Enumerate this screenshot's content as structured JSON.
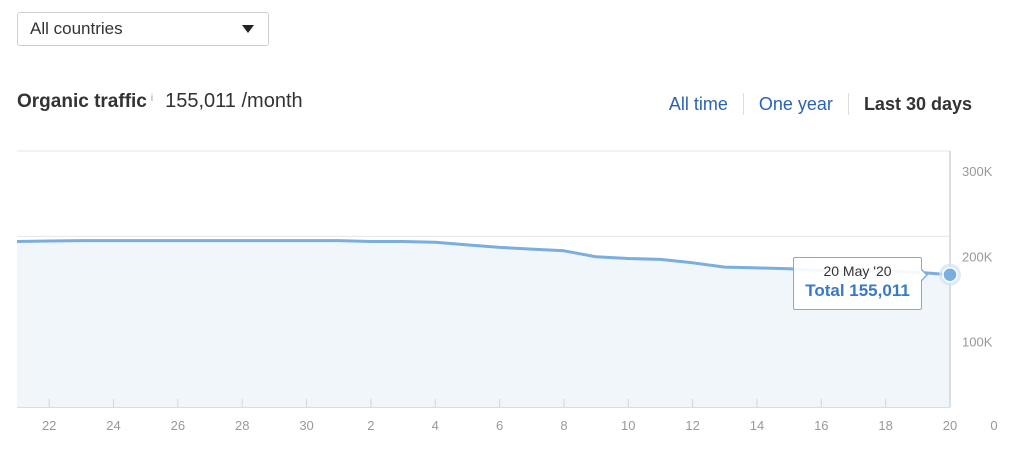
{
  "filters": {
    "country_select": {
      "value": "All countries",
      "icon": "caret-down-icon"
    }
  },
  "header": {
    "title": "Organic traffic",
    "info_icon": "i",
    "metric_value": "155,011 /month"
  },
  "range_tabs": [
    {
      "label": "All time",
      "active": false
    },
    {
      "label": "One year",
      "active": false
    },
    {
      "label": "Last 30 days",
      "active": true
    }
  ],
  "tooltip": {
    "date": "20 May '20",
    "total": "Total 155,011"
  },
  "colors": {
    "line": "#7aaee0",
    "area_fill": "#f1f6fb",
    "grid": "#e6e6e6",
    "link": "#2c62b3",
    "tooltip_total": "#3a78c8"
  },
  "chart_data": {
    "type": "area",
    "title": "Organic traffic",
    "xlabel": "",
    "ylabel": "",
    "x": [
      "21",
      "22",
      "23",
      "24",
      "25",
      "26",
      "27",
      "28",
      "29",
      "30",
      "1",
      "2",
      "3",
      "4",
      "5",
      "6",
      "7",
      "8",
      "9",
      "10",
      "11",
      "12",
      "13",
      "14",
      "15",
      "16",
      "17",
      "18",
      "19",
      "20"
    ],
    "x_tick_labels": [
      "22",
      "24",
      "26",
      "28",
      "30",
      "2",
      "4",
      "6",
      "8",
      "10",
      "12",
      "14",
      "16",
      "18",
      "20"
    ],
    "series": [
      {
        "name": "Total",
        "values": [
          194000,
          194500,
          195000,
          195000,
          195000,
          195000,
          195000,
          195000,
          195000,
          195000,
          195000,
          194000,
          194000,
          193000,
          190000,
          187000,
          185000,
          183000,
          176000,
          174000,
          173000,
          169000,
          164000,
          163000,
          162000,
          160000,
          159500,
          159000,
          158000,
          155011
        ]
      }
    ],
    "y_tick_labels": [
      "0",
      "100K",
      "200K",
      "300K"
    ],
    "ylim": [
      0,
      300000
    ],
    "grid": true,
    "y_axis_position": "right",
    "highlighted_point": {
      "x": "20",
      "label": "20 May '20",
      "value": 155011
    }
  }
}
